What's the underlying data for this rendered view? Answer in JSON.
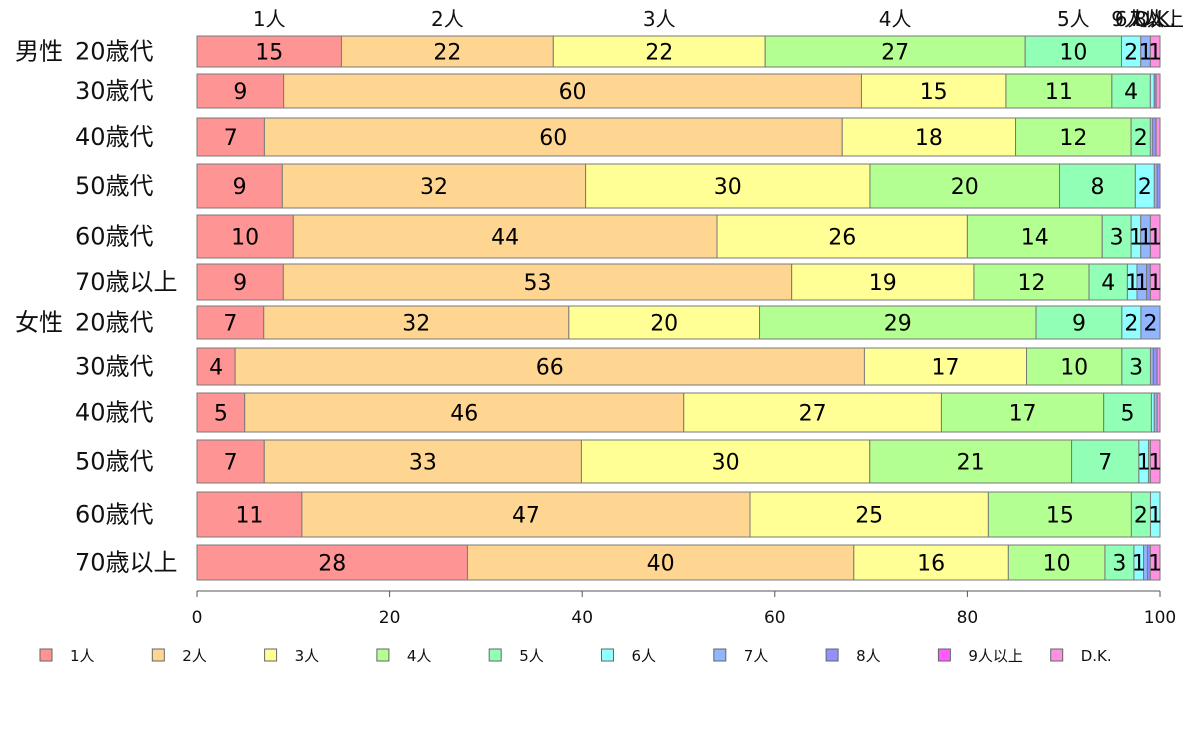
{
  "chart_data": {
    "type": "bar",
    "orientation": "horizontal",
    "stacked": true,
    "xlim": [
      0,
      100
    ],
    "xticks": [
      0,
      20,
      40,
      60,
      80,
      100
    ],
    "grid": false,
    "legend": "bottom",
    "row_groups": [
      {
        "name": "男性",
        "rows": [
          "20歳代",
          "30歳代",
          "40歳代",
          "50歳代",
          "60歳代",
          "70歳以上"
        ]
      },
      {
        "name": "女性",
        "rows": [
          "20歳代",
          "30歳代",
          "40歳代",
          "50歳代",
          "60歳代",
          "70歳以上"
        ]
      }
    ],
    "series": [
      {
        "name": "1人",
        "color": "#FF9494",
        "values": [
          15,
          9,
          7,
          9,
          10,
          9,
          7,
          4,
          5,
          7,
          11,
          28
        ]
      },
      {
        "name": "2人",
        "color": "#FFD691",
        "values": [
          22,
          60,
          60,
          32,
          44,
          53,
          32,
          66,
          46,
          33,
          47,
          40
        ]
      },
      {
        "name": "3人",
        "color": "#FFFF96",
        "values": [
          22,
          15,
          18,
          30,
          26,
          19,
          20,
          17,
          27,
          30,
          25,
          16
        ]
      },
      {
        "name": "4人",
        "color": "#B3FF91",
        "values": [
          27,
          11,
          12,
          20,
          14,
          12,
          29,
          10,
          17,
          21,
          15,
          10
        ]
      },
      {
        "name": "5人",
        "color": "#91FFB5",
        "values": [
          10,
          4,
          2,
          8,
          3,
          4,
          9,
          3,
          5,
          7,
          2,
          3
        ]
      },
      {
        "name": "6人",
        "color": "#91FFFF",
        "values": [
          2,
          0.4,
          0.2,
          2,
          1,
          1,
          2,
          0,
          0.3,
          1,
          1,
          1
        ]
      },
      {
        "name": "7人",
        "color": "#91B5FF",
        "values": [
          1,
          0,
          0,
          0.3,
          1,
          1,
          2,
          0.3,
          0.3,
          0.2,
          0,
          0.4
        ]
      },
      {
        "name": "8人",
        "color": "#9191FF",
        "values": [
          0,
          0.2,
          0.4,
          0.3,
          0,
          0.4,
          0,
          0.4,
          0,
          0,
          0,
          0.3
        ]
      },
      {
        "name": "9人以上",
        "color": "#FF5CFF",
        "values": [
          0,
          0,
          0,
          0,
          0,
          0,
          0,
          0,
          0,
          0,
          0,
          0
        ]
      },
      {
        "name": "D.K.",
        "color": "#FF91E1",
        "values": [
          1,
          0.4,
          0.4,
          0,
          1,
          1,
          0,
          0.3,
          0.3,
          1,
          0,
          1
        ]
      }
    ]
  }
}
